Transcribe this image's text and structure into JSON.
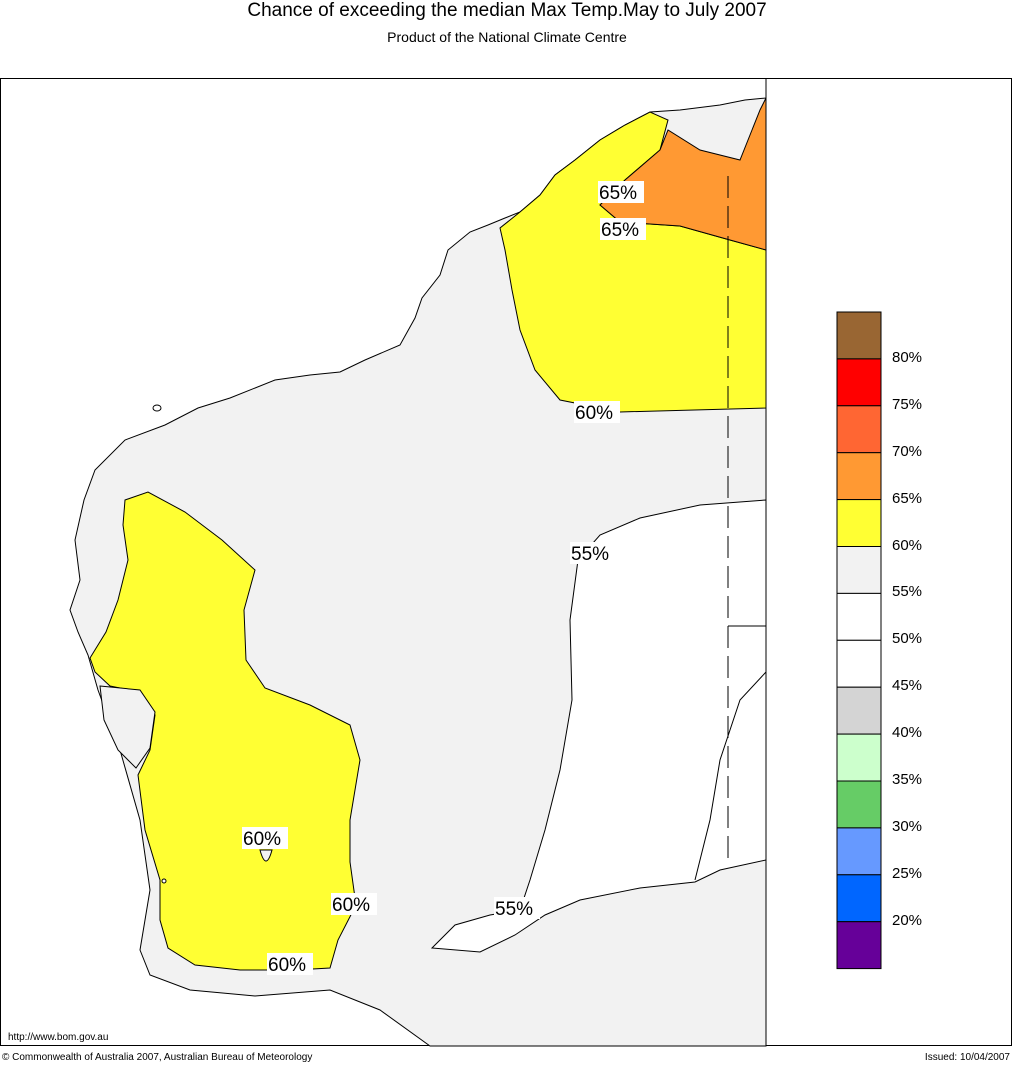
{
  "header": {
    "title": "Chance of exceeding the median Max Temp.May to July 2007",
    "subtitle": "Product of the National Climate Centre"
  },
  "map": {
    "contour_labels": [
      "65%",
      "65%",
      "60%",
      "55%",
      "60%",
      "60%",
      "60%",
      "55%"
    ]
  },
  "legend": {
    "bins": [
      {
        "label": "80%",
        "color": "#996633"
      },
      {
        "label": "75%",
        "color": "#ff0000"
      },
      {
        "label": "70%",
        "color": "#ff6633"
      },
      {
        "label": "65%",
        "color": "#ff9933"
      },
      {
        "label": "60%",
        "color": "#ffff33"
      },
      {
        "label": "55%",
        "color": "#f2f2f2"
      },
      {
        "label": "50%",
        "color": "#ffffff"
      },
      {
        "label": "45%",
        "color": "#ffffff"
      },
      {
        "label": "40%",
        "color": "#d4d4d4"
      },
      {
        "label": "35%",
        "color": "#ccffcc"
      },
      {
        "label": "30%",
        "color": "#66cc66"
      },
      {
        "label": "25%",
        "color": "#6699ff"
      },
      {
        "label": "20%",
        "color": "#0066ff"
      },
      {
        "label": "",
        "color": "#660099"
      }
    ]
  },
  "footer": {
    "url": "http://www.bom.gov.au",
    "copyright": "© Commonwealth of Australia 2007, Australian Bureau of Meteorology",
    "issued": "Issued: 10/04/2007"
  }
}
